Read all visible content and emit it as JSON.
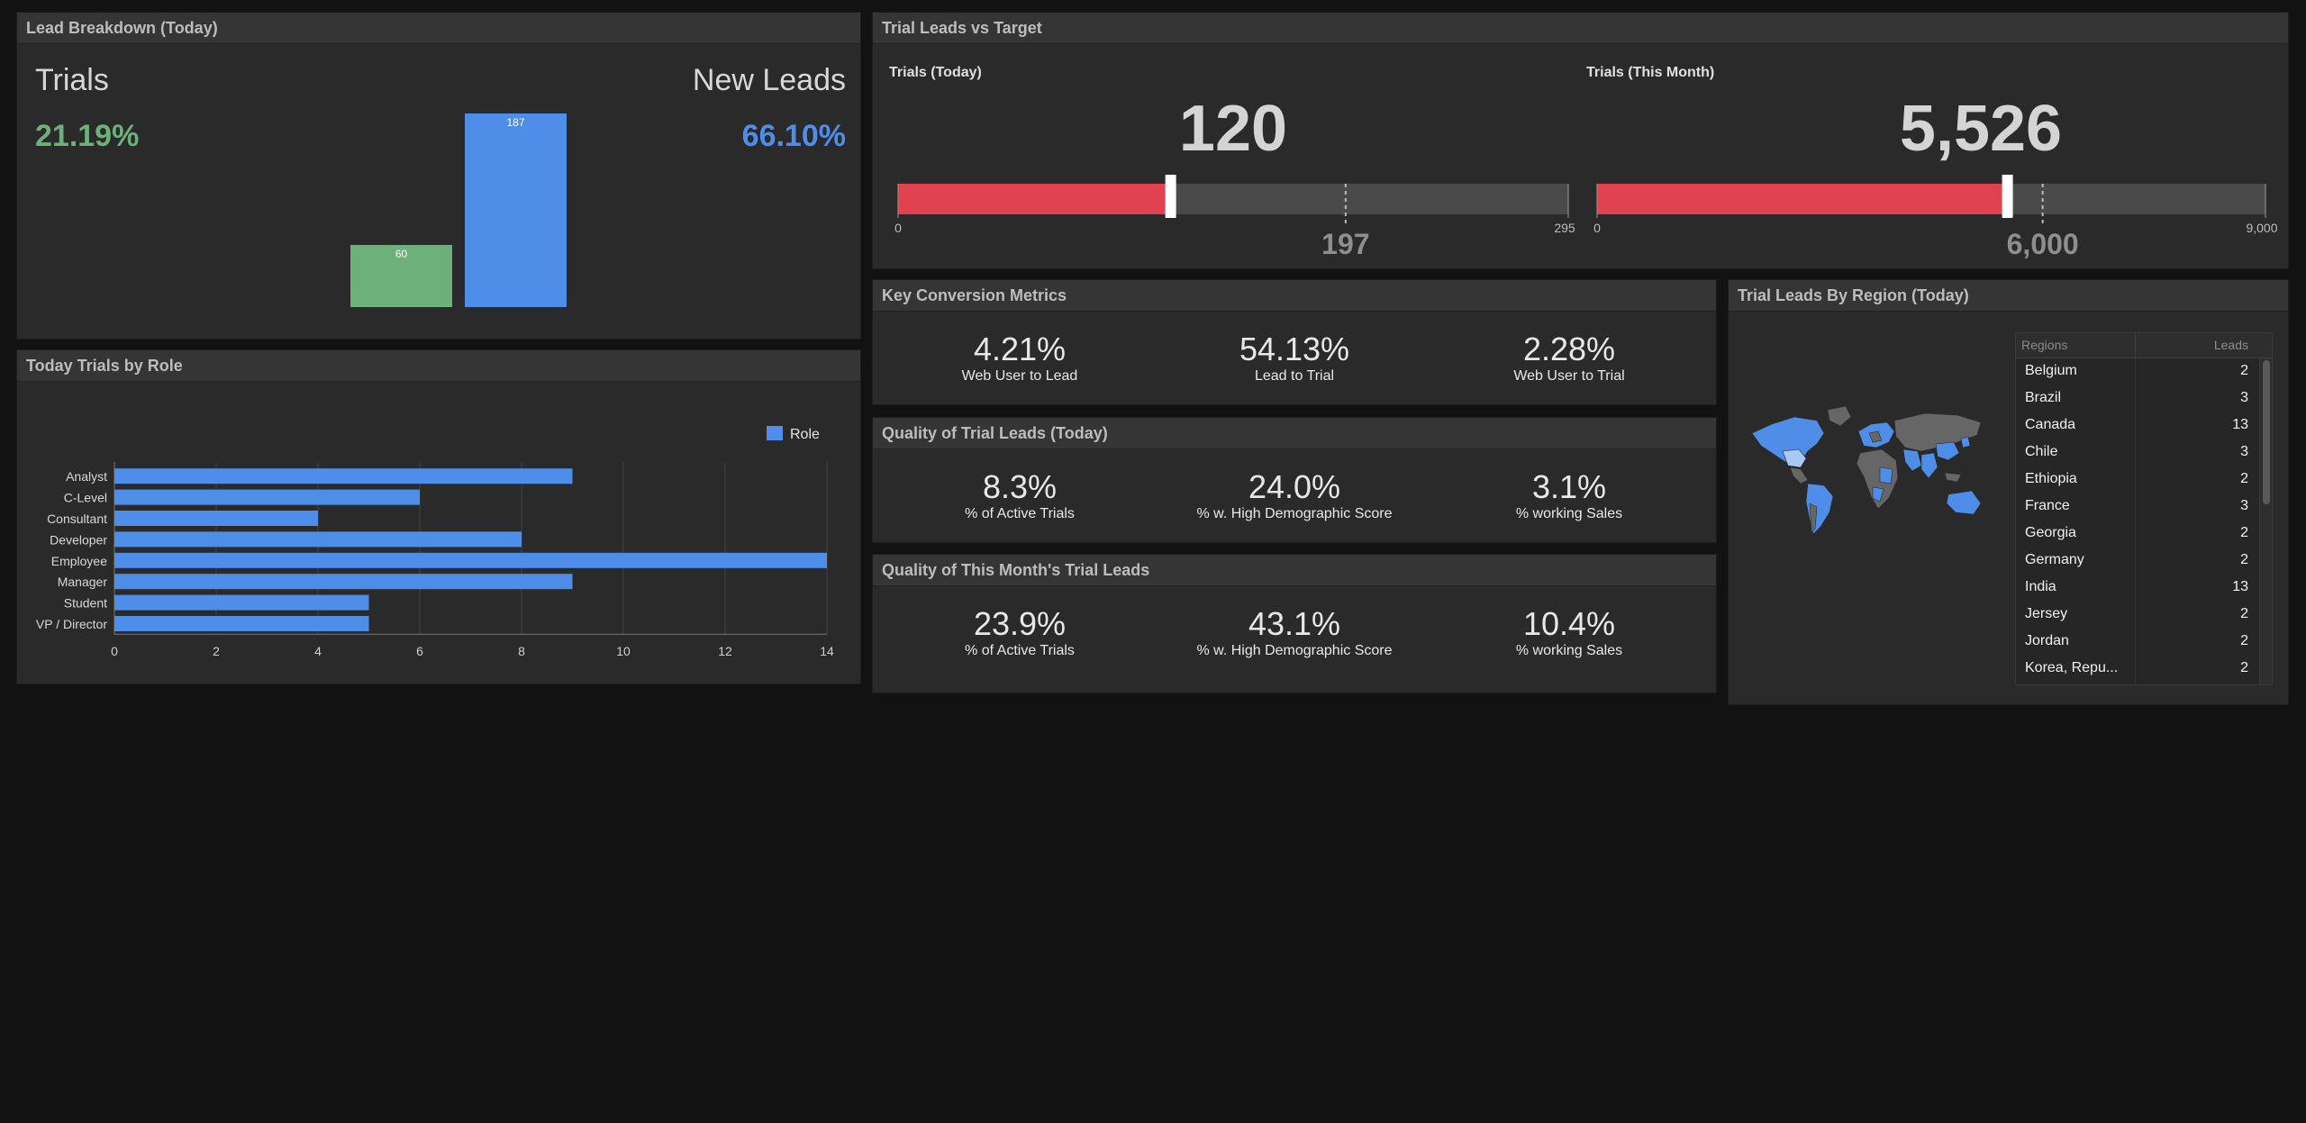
{
  "lead_breakdown": {
    "title": "Lead Breakdown (Today)",
    "trials_label": "Trials",
    "trials_pct": "21.19%",
    "new_leads_label": "New Leads",
    "new_leads_pct": "66.10%",
    "chart_data": {
      "type": "bar",
      "categories": [
        "Trials",
        "New Leads"
      ],
      "values": [
        60,
        187
      ],
      "colors": [
        "#6db07a",
        "#4f8ee8"
      ]
    }
  },
  "trials_vs_target": {
    "title": "Trial Leads vs Target",
    "today": {
      "label": "Trials (Today)",
      "value": "120",
      "value_num": 120,
      "target": "197",
      "target_num": 197,
      "min": "0",
      "max": "295",
      "max_num": 295
    },
    "month": {
      "label": "Trials (This Month)",
      "value": "5,526",
      "value_num": 5526,
      "target": "6,000",
      "target_num": 6000,
      "min": "0",
      "max": "9,000",
      "max_num": 9000
    }
  },
  "trials_by_role": {
    "title": "Today Trials by Role",
    "chart_data": {
      "type": "bar",
      "orientation": "horizontal",
      "categories": [
        "Analyst",
        "C-Level",
        "Consultant",
        "Developer",
        "Employee",
        "Manager",
        "Student",
        "VP / Director"
      ],
      "series": [
        {
          "name": "Role",
          "values": [
            9,
            6,
            4,
            8,
            14,
            9,
            5,
            5
          ]
        }
      ],
      "xticks": [
        "0",
        "2",
        "4",
        "6",
        "8",
        "10",
        "12",
        "14"
      ],
      "xlim": [
        0,
        14
      ],
      "legend": "top-right",
      "grid": true,
      "color": "#4f8ee8"
    }
  },
  "key_conversion": {
    "title": "Key Conversion Metrics",
    "metrics": [
      {
        "value": "4.21%",
        "label": "Web User to Lead"
      },
      {
        "value": "54.13%",
        "label": "Lead to Trial"
      },
      {
        "value": "2.28%",
        "label": "Web User to Trial"
      }
    ]
  },
  "quality_today": {
    "title": "Quality of Trial Leads (Today)",
    "metrics": [
      {
        "value": "8.3%",
        "label": "% of Active Trials"
      },
      {
        "value": "24.0%",
        "label": "% w. High Demographic Score"
      },
      {
        "value": "3.1%",
        "label": "% working Sales"
      }
    ]
  },
  "quality_month": {
    "title": "Quality of This Month's Trial Leads",
    "metrics": [
      {
        "value": "23.9%",
        "label": "% of Active Trials"
      },
      {
        "value": "43.1%",
        "label": "% w. High Demographic Score"
      },
      {
        "value": "10.4%",
        "label": "% working Sales"
      }
    ]
  },
  "region": {
    "title": "Trial Leads By Region (Today)",
    "col_regions": "Regions",
    "col_leads": "Leads",
    "rows": [
      {
        "name": "Belgium",
        "leads": "2"
      },
      {
        "name": "Brazil",
        "leads": "3"
      },
      {
        "name": "Canada",
        "leads": "13"
      },
      {
        "name": "Chile",
        "leads": "3"
      },
      {
        "name": "Ethiopia",
        "leads": "2"
      },
      {
        "name": "France",
        "leads": "3"
      },
      {
        "name": "Georgia",
        "leads": "2"
      },
      {
        "name": "Germany",
        "leads": "2"
      },
      {
        "name": "India",
        "leads": "13"
      },
      {
        "name": "Jersey",
        "leads": "2"
      },
      {
        "name": "Jordan",
        "leads": "2"
      },
      {
        "name": "Korea, Repu...",
        "leads": "2"
      }
    ]
  },
  "colors": {
    "green": "#6db07a",
    "blue": "#4f8ee8",
    "red": "#e0434f",
    "gauge_bg": "#4a4a4a"
  }
}
